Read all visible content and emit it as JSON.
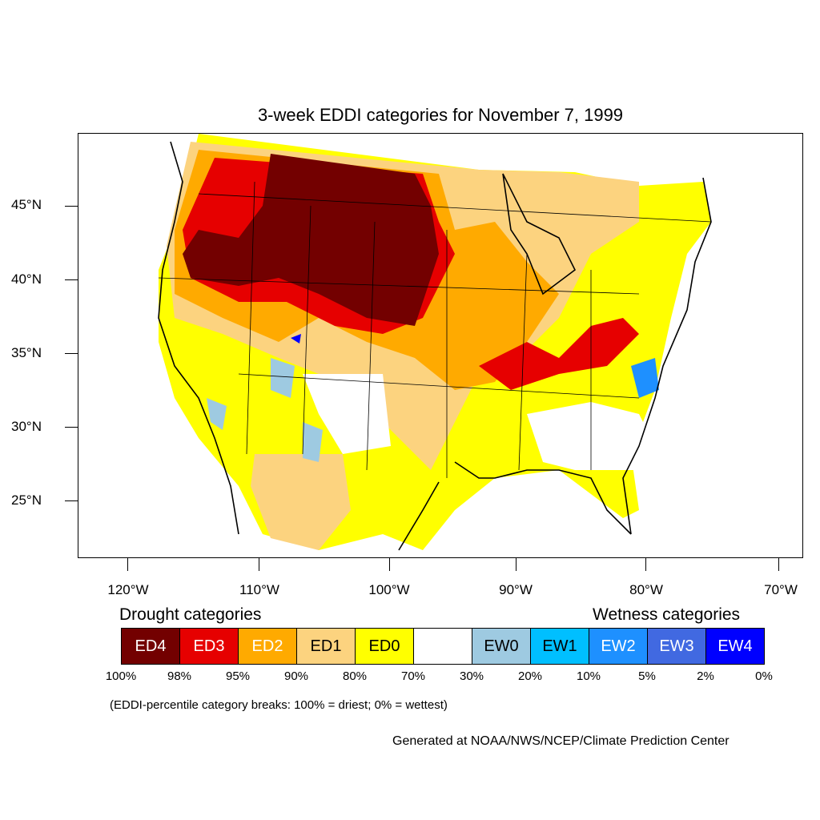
{
  "title": "3-week EDDI categories for November 7, 1999",
  "latitude_labels": [
    "45°N",
    "40°N",
    "35°N",
    "30°N",
    "25°N"
  ],
  "longitude_labels": [
    "120°W",
    "110°W",
    "100°W",
    "90°W",
    "80°W",
    "70°W"
  ],
  "legend": {
    "drought_heading": "Drought categories",
    "wetness_heading": "Wetness categories",
    "categories": [
      {
        "label": "ED4",
        "color": "#730000",
        "text_color": "#ffffff"
      },
      {
        "label": "ED3",
        "color": "#e60000",
        "text_color": "#ffffff"
      },
      {
        "label": "ED2",
        "color": "#ffaa00",
        "text_color": "#ffffff"
      },
      {
        "label": "ED1",
        "color": "#fcd37f",
        "text_color": "#000000"
      },
      {
        "label": "ED0",
        "color": "#ffff00",
        "text_color": "#000000"
      },
      {
        "label": "",
        "color": "#ffffff",
        "text_color": "#000000"
      },
      {
        "label": "EW0",
        "color": "#9ecae1",
        "text_color": "#000000"
      },
      {
        "label": "EW1",
        "color": "#00bfff",
        "text_color": "#000000"
      },
      {
        "label": "EW2",
        "color": "#1e90ff",
        "text_color": "#ffffff"
      },
      {
        "label": "EW3",
        "color": "#4169e1",
        "text_color": "#ffffff"
      },
      {
        "label": "EW4",
        "color": "#0000ff",
        "text_color": "#ffffff"
      }
    ],
    "breaks": [
      "100%",
      "98%",
      "95%",
      "90%",
      "80%",
      "70%",
      "30%",
      "20%",
      "10%",
      "5%",
      "2%",
      "0%"
    ],
    "note": "(EDDI-percentile category breaks: 100% = driest; 0% = wettest)"
  },
  "credit": "Generated at NOAA/NWS/NCEP/Climate Prediction Center"
}
